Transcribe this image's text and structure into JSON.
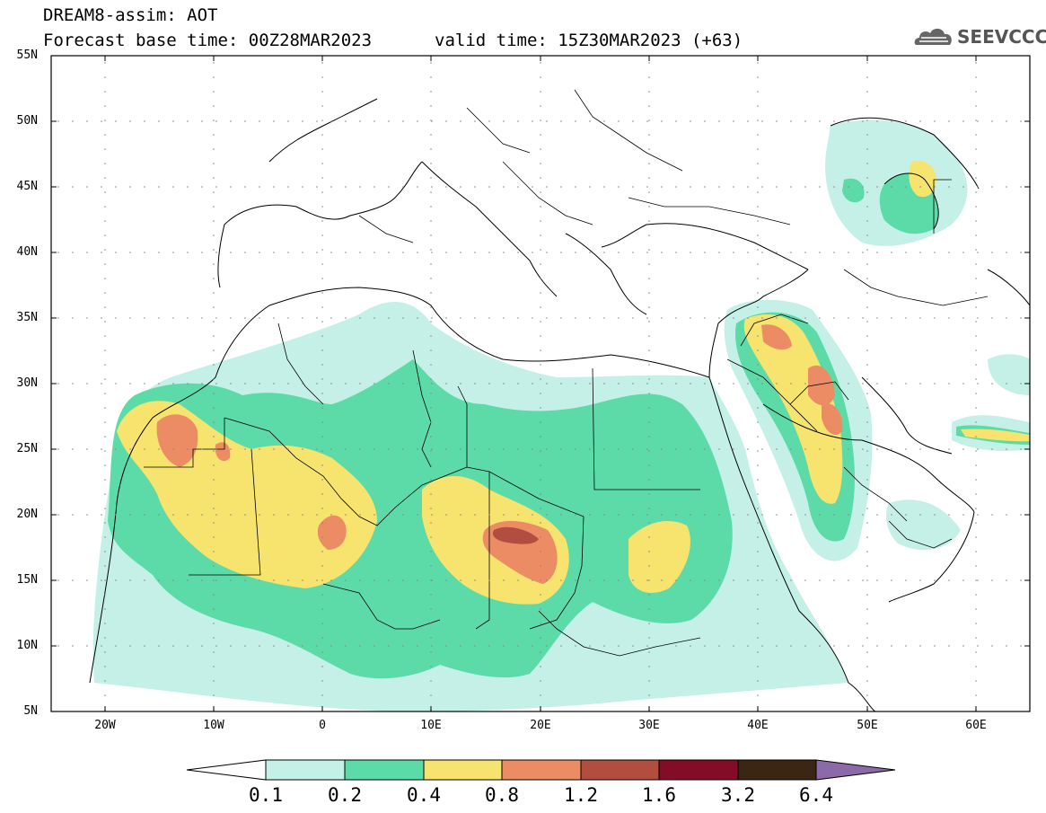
{
  "header": {
    "line1": "DREAM8-assim: AOT",
    "line2": "Forecast base time: 00Z28MAR2023",
    "valid": "valid time: 15Z30MAR2023 (+63)"
  },
  "logo": {
    "text": "SEEVCCC",
    "icon": "cloud-icon"
  },
  "map": {
    "lat_labels": [
      "55N",
      "50N",
      "45N",
      "40N",
      "35N",
      "30N",
      "25N",
      "20N",
      "15N",
      "10N",
      "5N"
    ],
    "lon_labels": [
      "20W",
      "10W",
      "0",
      "10E",
      "20E",
      "30E",
      "40E",
      "50E",
      "60E"
    ]
  },
  "colorbar": {
    "labels": [
      "0.1",
      "0.2",
      "0.4",
      "0.8",
      "1.2",
      "1.6",
      "3.2",
      "6.4"
    ],
    "colors": [
      "#ffffff",
      "#c5f0e8",
      "#5cdba8",
      "#f6e46e",
      "#ec8c65",
      "#b14e3f",
      "#830c26",
      "#3b2513",
      "#8c6aa9"
    ]
  },
  "colors": {
    "lev1": "#c5f0e8",
    "lev2": "#5cdba8",
    "lev3": "#f6e46e",
    "lev4": "#ec8c65",
    "lev5": "#b14e3f"
  }
}
